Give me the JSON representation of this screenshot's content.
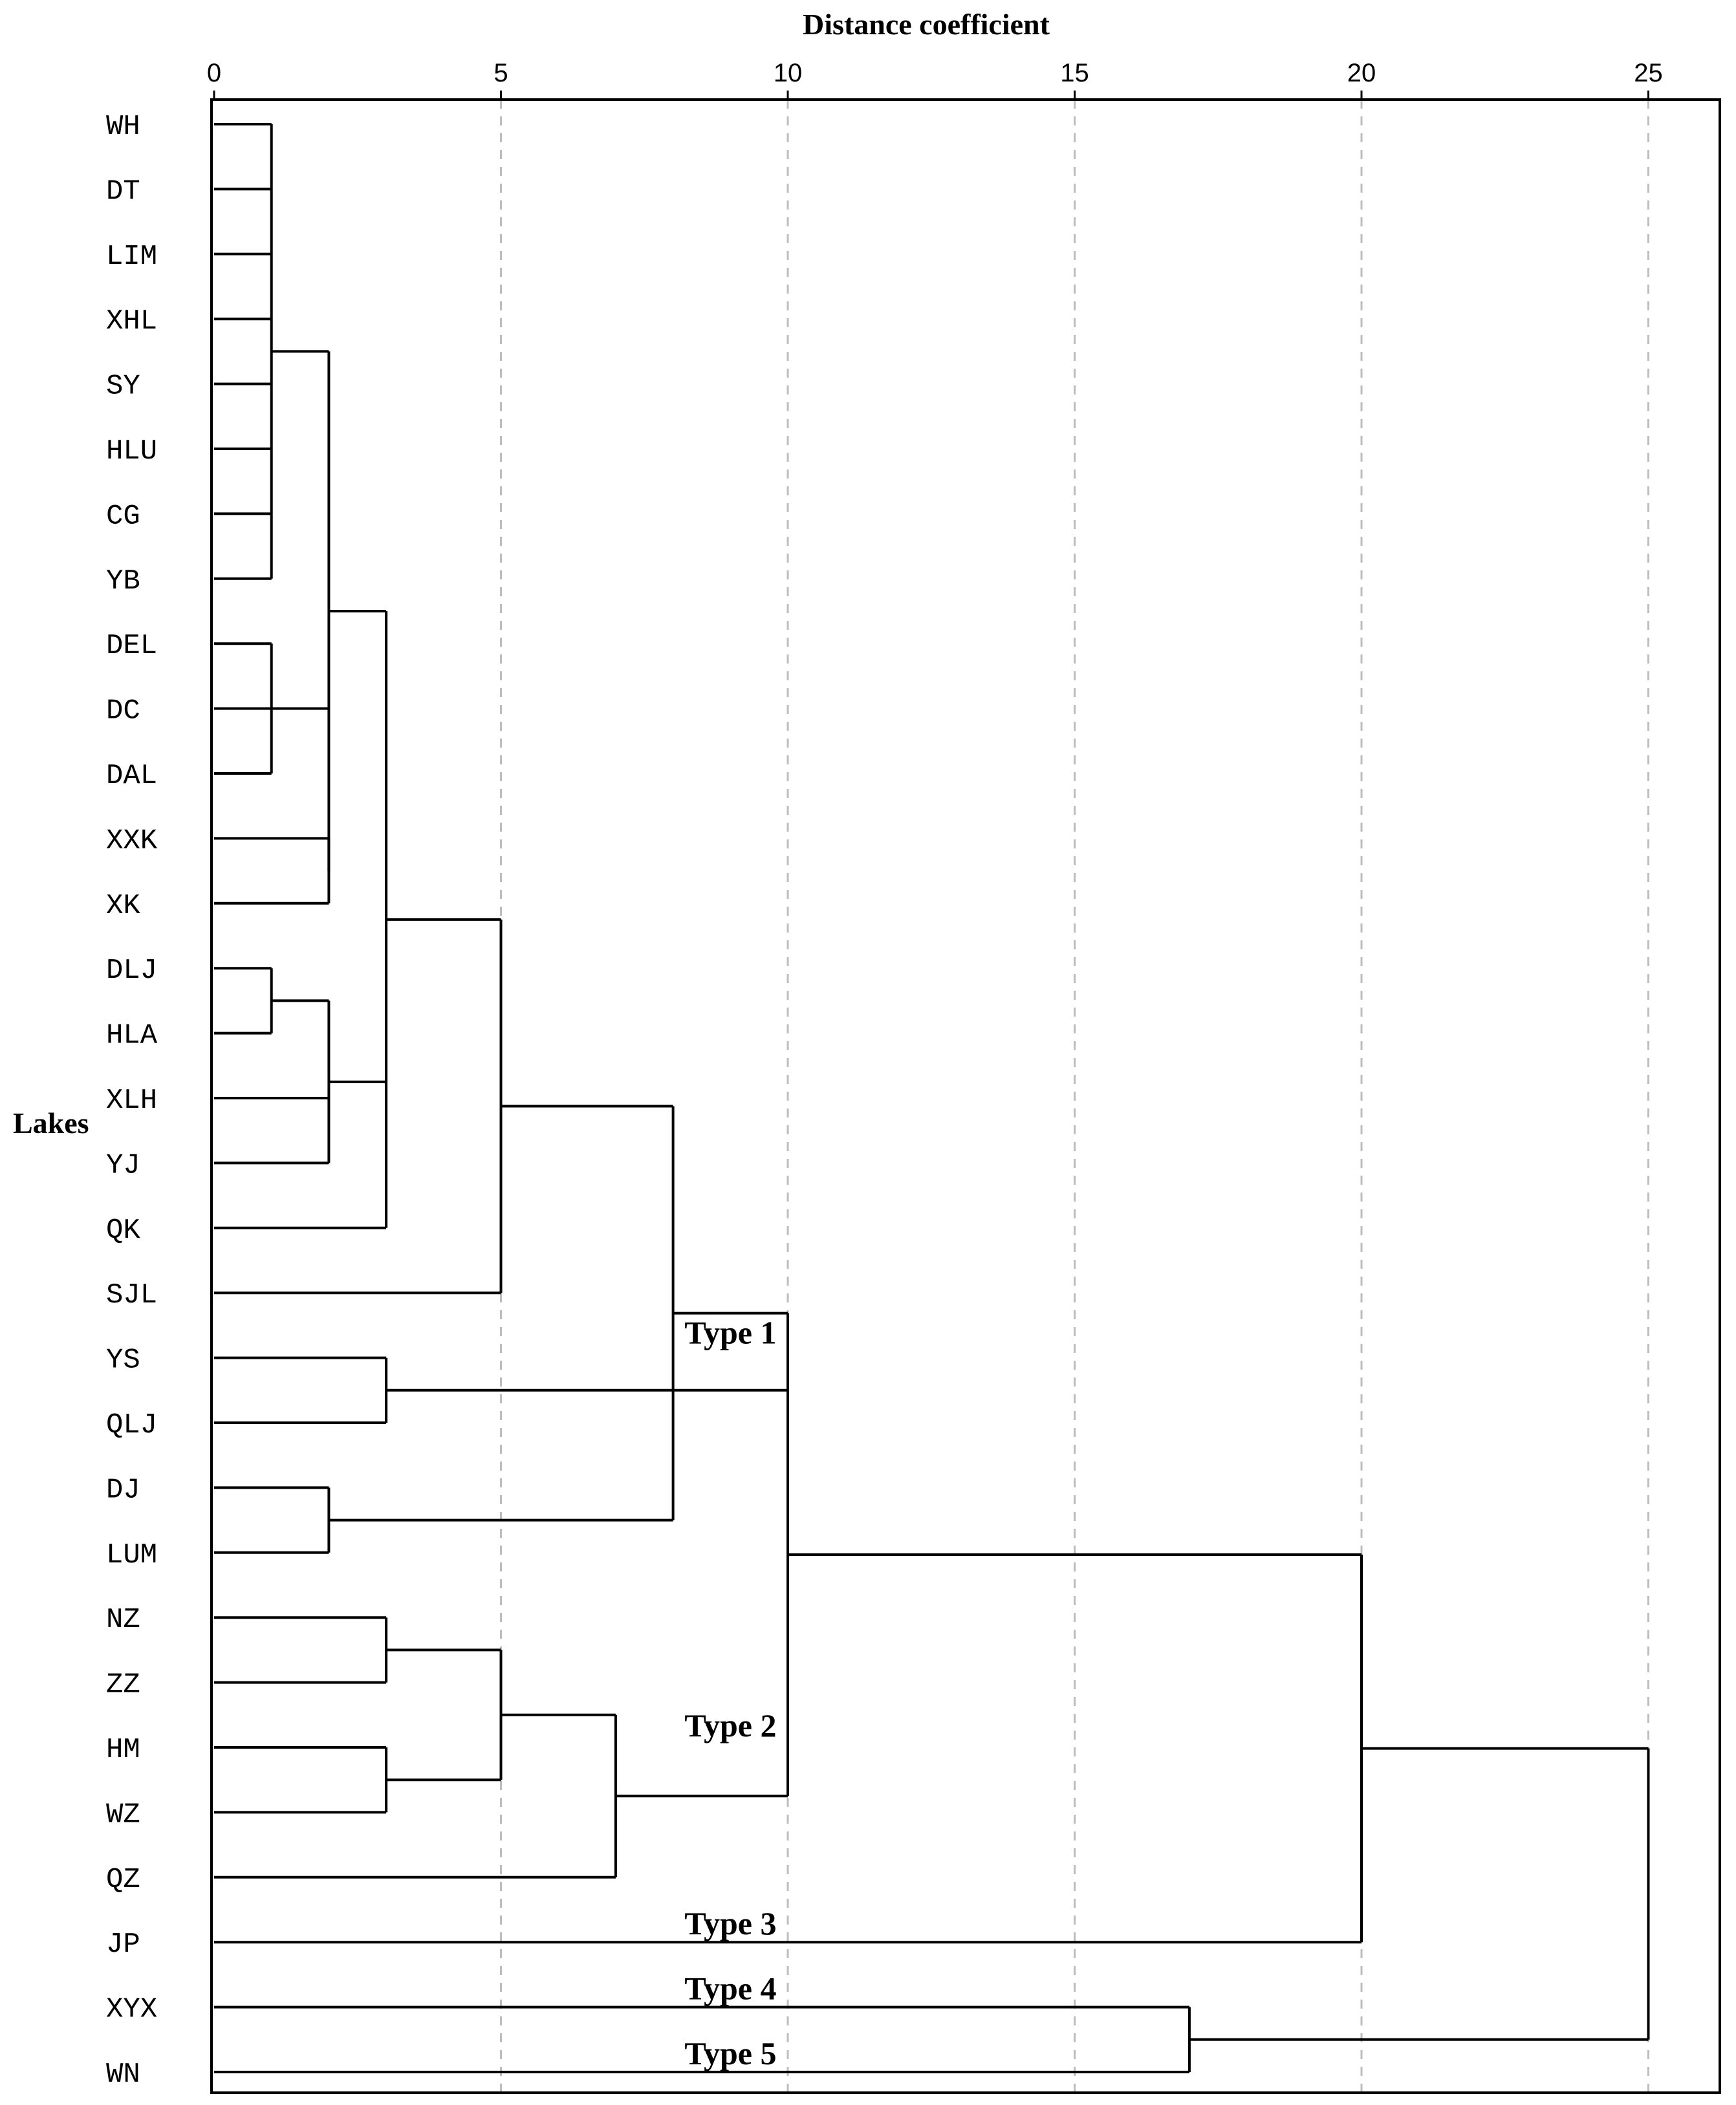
{
  "chart_data": {
    "type": "dendrogram",
    "title": "",
    "xlabel": "Distance coefficient",
    "ylabel": "Lakes",
    "xlim": [
      0,
      26.3
    ],
    "xticks": [
      0,
      5,
      10,
      15,
      20,
      25
    ],
    "xtick_labels": [
      "0",
      "5",
      "10",
      "15",
      "20",
      "25"
    ],
    "leaves": [
      "WH",
      "DT",
      "LIM",
      "XHL",
      "SY",
      "HLU",
      "CG",
      "YB",
      "DEL",
      "DC",
      "DAL",
      "XXK",
      "XK",
      "DLJ",
      "HLA",
      "XLH",
      "YJ",
      "QK",
      "SJL",
      "YS",
      "QLJ",
      "DJ",
      "LUM",
      "NZ",
      "ZZ",
      "HM",
      "WZ",
      "QZ",
      "JP",
      "XYX",
      "WN"
    ],
    "merges": [
      {
        "id": "c1",
        "children": [
          "WH",
          "DT",
          "LIM",
          "XHL",
          "SY",
          "HLU",
          "CG",
          "YB"
        ],
        "height": 1
      },
      {
        "id": "c2",
        "children": [
          "DEL",
          "DC",
          "DAL"
        ],
        "height": 1
      },
      {
        "id": "c3",
        "children": [
          "DLJ",
          "HLA"
        ],
        "height": 1
      },
      {
        "id": "c4",
        "children": [
          "XXK",
          "XK"
        ],
        "height": 2
      },
      {
        "id": "c5",
        "children": [
          "c1",
          "c2",
          "c4"
        ],
        "height": 2
      },
      {
        "id": "c6",
        "children": [
          "c3",
          "XLH",
          "YJ"
        ],
        "height": 2
      },
      {
        "id": "c7",
        "children": [
          "c5",
          "c6",
          "QK"
        ],
        "height": 3
      },
      {
        "id": "c8",
        "children": [
          "c7",
          "SJL"
        ],
        "height": 5
      },
      {
        "id": "c9",
        "children": [
          "DJ",
          "LUM"
        ],
        "height": 2
      },
      {
        "id": "c10",
        "children": [
          "c8",
          "c9"
        ],
        "height": 8
      },
      {
        "id": "c11",
        "children": [
          "YS",
          "QLJ"
        ],
        "height": 3
      },
      {
        "id": "c12",
        "children": [
          "NZ",
          "ZZ"
        ],
        "height": 3
      },
      {
        "id": "c13",
        "children": [
          "HM",
          "WZ"
        ],
        "height": 3
      },
      {
        "id": "c14",
        "children": [
          "c12",
          "c13"
        ],
        "height": 5
      },
      {
        "id": "c15",
        "children": [
          "c14",
          "QZ"
        ],
        "height": 7
      },
      {
        "id": "c16",
        "children": [
          "c10",
          "c11",
          "c15"
        ],
        "height": 10
      },
      {
        "id": "c17",
        "children": [
          "c16",
          "JP"
        ],
        "height": 20
      },
      {
        "id": "c18",
        "children": [
          "XYX",
          "WN"
        ],
        "height": 17
      },
      {
        "id": "c19",
        "children": [
          "c17",
          "c18"
        ],
        "height": 25
      }
    ],
    "type_labels": [
      {
        "text": "Type 1",
        "distance": 8.2,
        "anchor_leaf": 19,
        "offset": -0.4
      },
      {
        "text": "Type 2",
        "distance": 8.2,
        "anchor_leaf": 25,
        "offset": -0.35
      },
      {
        "text": "Type 3",
        "distance": 8.2,
        "anchor_leaf": 28,
        "offset": -0.3
      },
      {
        "text": "Type 4",
        "distance": 8.2,
        "anchor_leaf": 29,
        "offset": -0.3
      },
      {
        "text": "Type 5",
        "distance": 8.2,
        "anchor_leaf": 30,
        "offset": -0.3
      }
    ],
    "grid": true
  }
}
